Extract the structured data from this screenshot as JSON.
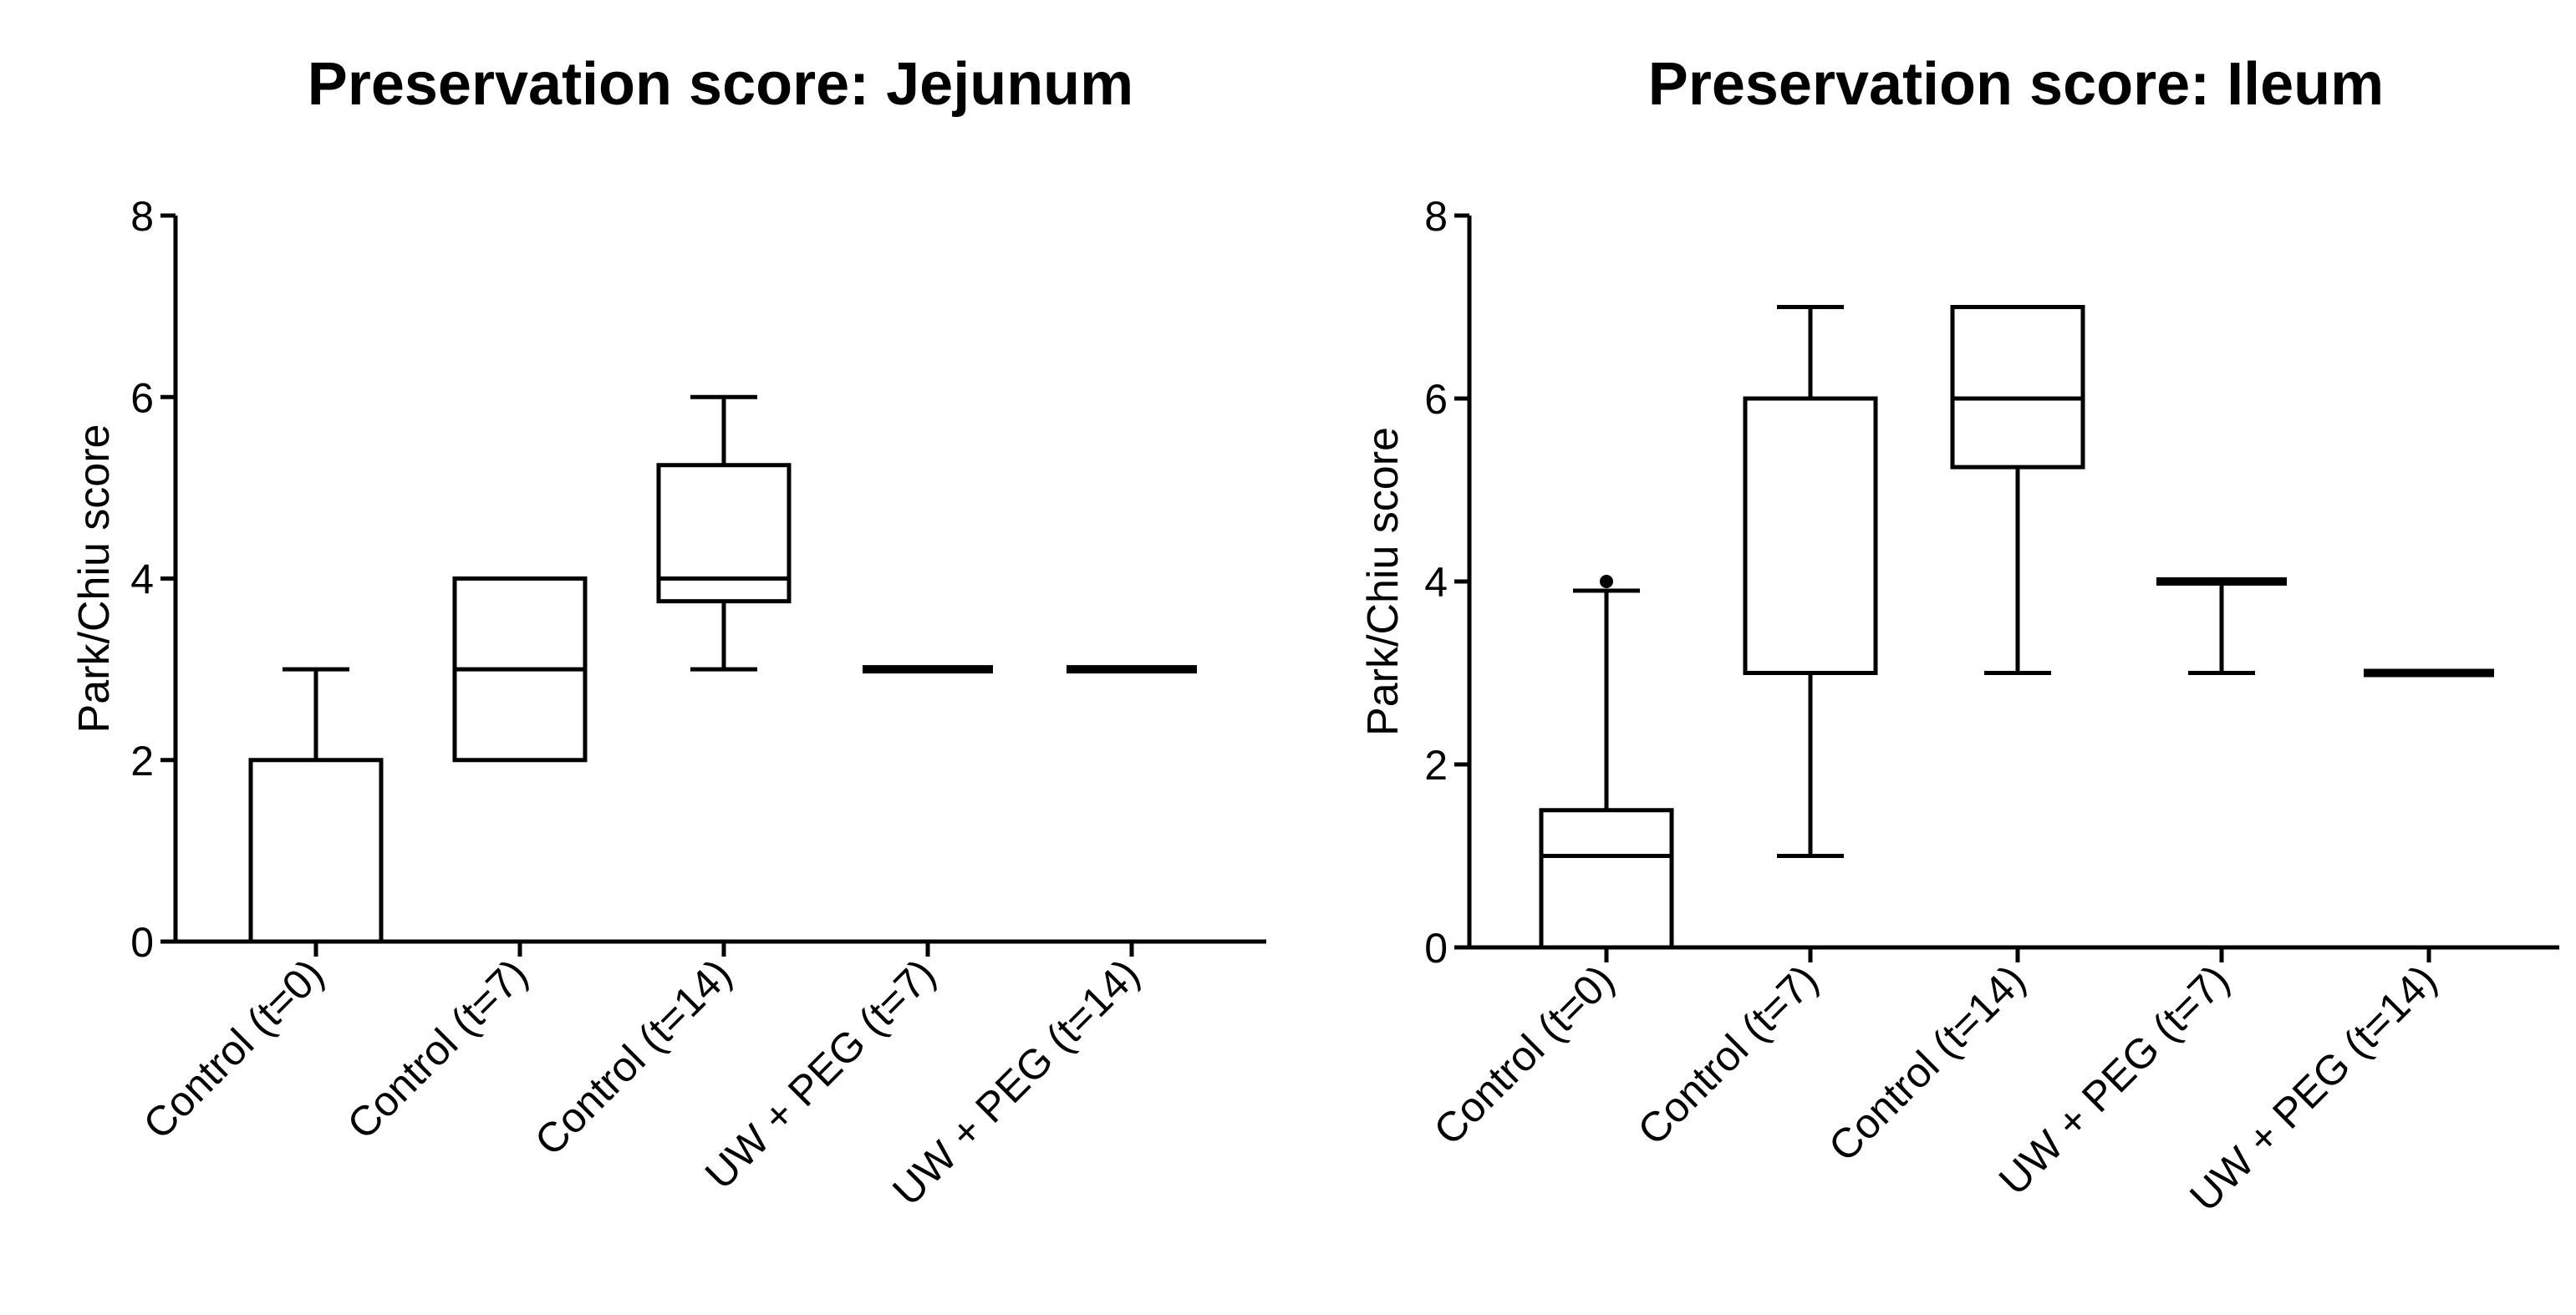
{
  "chart_data": [
    {
      "type": "boxplot",
      "title": "Preservation score: Jejunum",
      "xlabel": "",
      "ylabel": "Park/Chiu score",
      "ylim": [
        0,
        8
      ],
      "yticks": [
        "0",
        "2",
        "4",
        "6",
        "8"
      ],
      "categories": [
        "Control (t=0)",
        "Control (t=7)",
        "Control (t=14)",
        "UW + PEG (t=7)",
        "UW + PEG (t=14)"
      ],
      "boxes": [
        {
          "whisker_low": 0,
          "q1": 0,
          "median": 0,
          "q3": 2,
          "whisker_high": 3,
          "outliers": []
        },
        {
          "whisker_low": 2,
          "q1": 2,
          "median": 3,
          "q3": 4,
          "whisker_high": 4,
          "outliers": []
        },
        {
          "whisker_low": 3,
          "q1": 3.75,
          "median": 4,
          "q3": 5.25,
          "whisker_high": 6,
          "outliers": []
        },
        {
          "whisker_low": 3,
          "q1": 3,
          "median": 3,
          "q3": 3,
          "whisker_high": 3,
          "outliers": []
        },
        {
          "whisker_low": 3,
          "q1": 3,
          "median": 3,
          "q3": 3,
          "whisker_high": 3,
          "outliers": []
        }
      ],
      "grid": false,
      "legend": "none"
    },
    {
      "type": "boxplot",
      "title": "Preservation score: Ileum",
      "xlabel": "",
      "ylabel": "Park/Chiu score",
      "ylim": [
        0,
        8
      ],
      "yticks": [
        "0",
        "2",
        "4",
        "6",
        "8"
      ],
      "categories": [
        "Control (t=0)",
        "Control (t=7)",
        "Control (t=14)",
        "UW + PEG (t=7)",
        "UW + PEG (t=14)"
      ],
      "boxes": [
        {
          "whisker_low": 0,
          "q1": 0,
          "median": 1,
          "q3": 1.5,
          "whisker_high": 3.9,
          "outliers": [
            4
          ]
        },
        {
          "whisker_low": 1,
          "q1": 3,
          "median": 3,
          "q3": 6,
          "whisker_high": 7,
          "outliers": []
        },
        {
          "whisker_low": 3,
          "q1": 5.25,
          "median": 6,
          "q3": 7,
          "whisker_high": 7,
          "outliers": []
        },
        {
          "whisker_low": 3,
          "q1": 4,
          "median": 4,
          "q3": 4,
          "whisker_high": 4,
          "outliers": []
        },
        {
          "whisker_low": 3,
          "q1": 3,
          "median": 3,
          "q3": 3,
          "whisker_high": 3,
          "outliers": []
        }
      ],
      "grid": false,
      "legend": "none"
    }
  ]
}
